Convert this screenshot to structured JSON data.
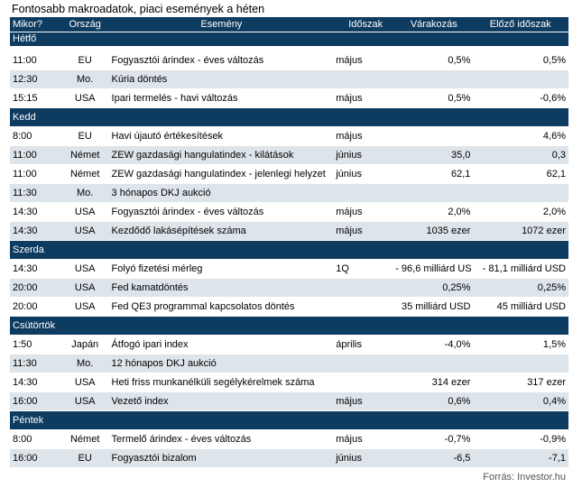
{
  "title": "Fontosabb makroadatok, piaci események a héten",
  "header": {
    "when": "Mikor?",
    "country": "Ország",
    "event": "Esemény",
    "period": "Időszak",
    "expected": "Várakozás",
    "previous": "Előző időszak"
  },
  "days": [
    {
      "name": "Hétfő",
      "rows": [
        {
          "time": "11:00",
          "country": "EU",
          "event": "Fogyasztói árindex - éves változás",
          "period": "május",
          "expected": "0,5%",
          "previous": "0,5%"
        },
        {
          "time": "12:30",
          "country": "Mo.",
          "event": "Kúria döntés",
          "period": "",
          "expected": "",
          "previous": ""
        },
        {
          "time": "15:15",
          "country": "USA",
          "event": "Ipari termelés - havi változás",
          "period": "május",
          "expected": "0,5%",
          "previous": "-0,6%"
        }
      ]
    },
    {
      "name": "Kedd",
      "rows": [
        {
          "time": "8:00",
          "country": "EU",
          "event": "Havi újautó értékesítések",
          "period": "május",
          "expected": "",
          "previous": "4,6%"
        },
        {
          "time": "11:00",
          "country": "Német",
          "event": "ZEW gazdasági hangulatindex - kilátások",
          "period": "június",
          "expected": "35,0",
          "previous": "0,3"
        },
        {
          "time": "11:00",
          "country": "Német",
          "event": "ZEW gazdasági hangulatindex - jelenlegi helyzet",
          "period": "június",
          "expected": "62,1",
          "previous": "62,1"
        },
        {
          "time": "11:30",
          "country": "Mo.",
          "event": "3 hónapos DKJ aukció",
          "period": "",
          "expected": "",
          "previous": ""
        },
        {
          "time": "14:30",
          "country": "USA",
          "event": "Fogyasztói árindex - éves változás",
          "period": "május",
          "expected": "2,0%",
          "previous": "2,0%"
        },
        {
          "time": "14:30",
          "country": "USA",
          "event": "Kezdődő lakásépítések száma",
          "period": "május",
          "expected": "1035 ezer",
          "previous": "1072 ezer"
        }
      ]
    },
    {
      "name": "Szerda",
      "rows": [
        {
          "time": "14:30",
          "country": "USA",
          "event": "Folyó fizetési mérleg",
          "period": "1Q",
          "expected": "- 96,6 milliárd USD",
          "previous": "- 81,1 milliárd USD"
        },
        {
          "time": "20:00",
          "country": "USA",
          "event": "Fed kamatdöntés",
          "period": "",
          "expected": "0,25%",
          "previous": "0,25%"
        },
        {
          "time": "20:00",
          "country": "USA",
          "event": "Fed QE3 programmal kapcsolatos döntés",
          "period": "",
          "expected": "35 milliárd USD",
          "previous": "45 milliárd USD"
        }
      ]
    },
    {
      "name": "Csütörtök",
      "rows": [
        {
          "time": "1:50",
          "country": "Japán",
          "event": "Átfogó ipari index",
          "period": "április",
          "expected": "-4,0%",
          "previous": "1,5%"
        },
        {
          "time": "11:30",
          "country": "Mo.",
          "event": "12 hónapos DKJ aukció",
          "period": "",
          "expected": "",
          "previous": ""
        },
        {
          "time": "14:30",
          "country": "USA",
          "event": "Heti friss munkanélküli segélykérelmek száma",
          "period": "",
          "expected": "314 ezer",
          "previous": "317 ezer"
        },
        {
          "time": "16:00",
          "country": "USA",
          "event": "Vezető index",
          "period": "május",
          "expected": "0,6%",
          "previous": "0,4%"
        }
      ]
    },
    {
      "name": "Péntek",
      "rows": [
        {
          "time": "8:00",
          "country": "Német",
          "event": "Termelő árindex - éves változás",
          "period": "május",
          "expected": "-0,7%",
          "previous": "-0,9%"
        },
        {
          "time": "16:00",
          "country": "EU",
          "event": "Fogyasztói bizalom",
          "period": "június",
          "expected": "-6,5",
          "previous": "-7,1"
        }
      ]
    }
  ],
  "source": "Forrás: Investor.hu"
}
